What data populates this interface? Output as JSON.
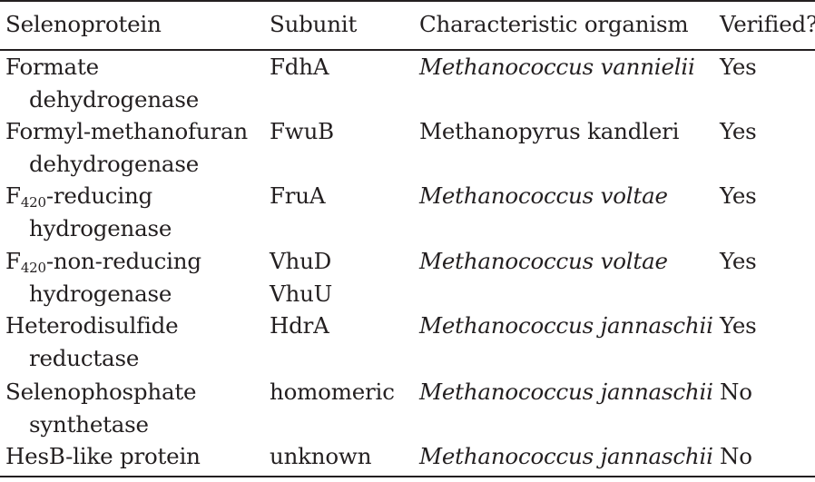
{
  "headers": {
    "selenoprotein": "Selenoprotein",
    "subunit": "Subunit",
    "organism": "Characteristic organism",
    "verified": "Verified?"
  },
  "rows": [
    {
      "protein_line1": "Formate",
      "protein_line2": "dehydrogenase",
      "subunit": "FdhA",
      "organism": "Methanococcus vannielii",
      "organism_italic": true,
      "verified": "Yes"
    },
    {
      "protein_line1": "Formyl-methanofuran",
      "protein_line2": "dehydrogenase",
      "subunit": "FwuB",
      "organism": "Methanopyrus kandleri",
      "organism_italic": false,
      "verified": "Yes"
    },
    {
      "protein_prefix": "F",
      "protein_sub": "420",
      "protein_line1_rest": "-reducing",
      "protein_line2": "hydrogenase",
      "subunit": "FruA",
      "organism": "Methanococcus voltae",
      "organism_italic": true,
      "verified": "Yes"
    },
    {
      "protein_prefix": "F",
      "protein_sub": "420",
      "protein_line1_rest": "-non-reducing",
      "protein_line2": "hydrogenase",
      "subunit": "VhuD",
      "subunit_line2": "VhuU",
      "organism": "Methanococcus voltae",
      "organism_italic": true,
      "verified": "Yes"
    },
    {
      "protein_line1": "Heterodisulfide",
      "protein_line2": "reductase",
      "subunit": "HdrA",
      "organism": "Methanococcus jannaschii",
      "organism_italic": true,
      "verified": "Yes"
    },
    {
      "protein_line1": "Selenophosphate",
      "protein_line2": "synthetase",
      "subunit": "homomeric",
      "organism": "Methanococcus jannaschii",
      "organism_italic": true,
      "verified": "No"
    },
    {
      "protein_line1": "HesB-like protein",
      "subunit": "unknown",
      "organism": "Methanococcus jannaschii",
      "organism_italic": true,
      "verified": "No"
    }
  ]
}
